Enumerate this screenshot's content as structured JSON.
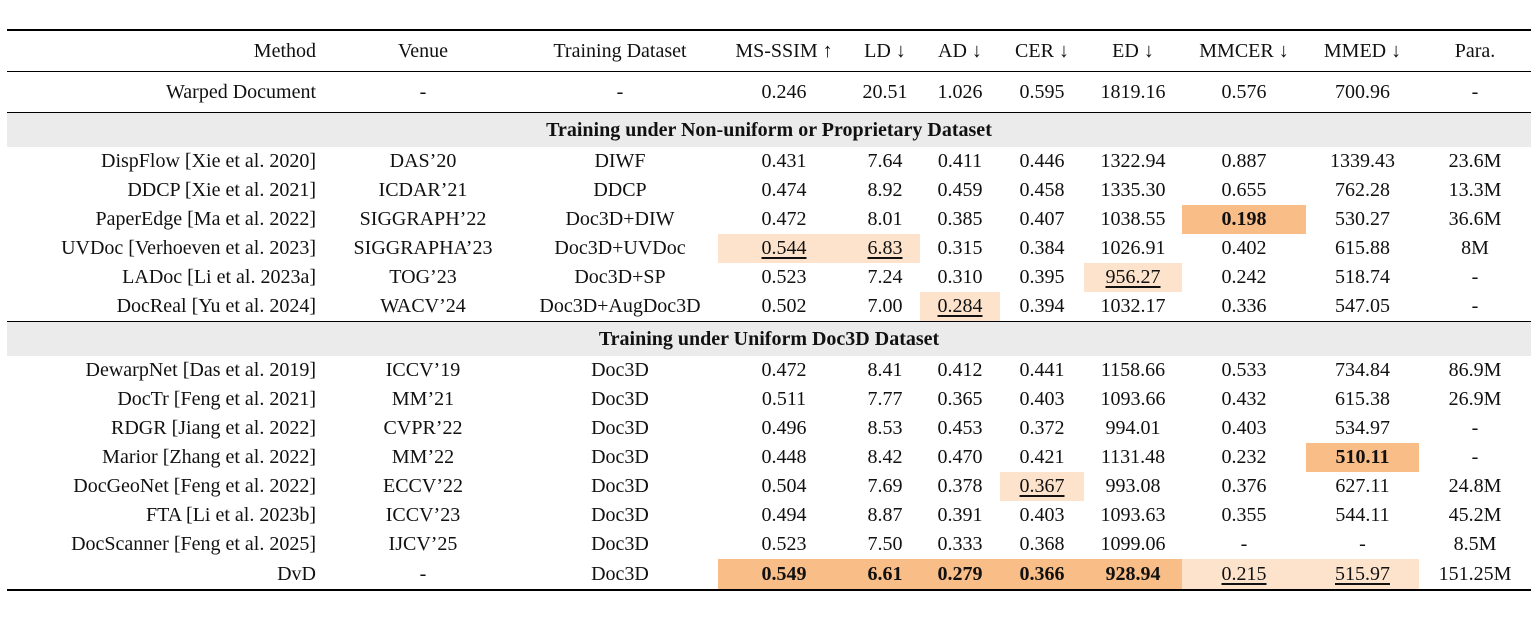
{
  "table": {
    "columns": [
      "Method",
      "Venue",
      "Training Dataset",
      "MS-SSIM ↑",
      "LD ↓",
      "AD ↓",
      "CER ↓",
      "ED ↓",
      "MMCER ↓",
      "MMED ↓",
      "Para."
    ],
    "baseline": {
      "cells": [
        "Warped Document",
        "-",
        "-",
        "0.246",
        "20.51",
        "1.026",
        "0.595",
        "1819.16",
        "0.576",
        "700.96",
        "-"
      ]
    },
    "sections": [
      {
        "title": "Training under Non-uniform or Proprietary Dataset",
        "rows": [
          {
            "cells": [
              "DispFlow [Xie et al. 2020]",
              "DAS’20",
              "DIWF",
              "0.431",
              "7.64",
              "0.411",
              "0.446",
              "1322.94",
              "0.887",
              "1339.43",
              "23.6M"
            ],
            "highlight": {}
          },
          {
            "cells": [
              "DDCP [Xie et al. 2021]",
              "ICDAR’21",
              "DDCP",
              "0.474",
              "8.92",
              "0.459",
              "0.458",
              "1335.30",
              "0.655",
              "762.28",
              "13.3M"
            ],
            "highlight": {}
          },
          {
            "cells": [
              "PaperEdge [Ma et al. 2022]",
              "SIGGRAPH’22",
              "Doc3D+DIW",
              "0.472",
              "8.01",
              "0.385",
              "0.407",
              "1038.55",
              "0.198",
              "530.27",
              "36.6M"
            ],
            "highlight": {
              "8": "best"
            }
          },
          {
            "cells": [
              "UVDoc [Verhoeven et al. 2023]",
              "SIGGRAPHA’23",
              "Doc3D+UVDoc",
              "0.544",
              "6.83",
              "0.315",
              "0.384",
              "1026.91",
              "0.402",
              "615.88",
              "8M"
            ],
            "highlight": {
              "3": "second",
              "4": "second"
            }
          },
          {
            "cells": [
              "LADoc [Li et al. 2023a]",
              "TOG’23",
              "Doc3D+SP",
              "0.523",
              "7.24",
              "0.310",
              "0.395",
              "956.27",
              "0.242",
              "518.74",
              "-"
            ],
            "highlight": {
              "7": "second"
            }
          },
          {
            "cells": [
              "DocReal [Yu et al. 2024]",
              "WACV’24",
              "Doc3D+AugDoc3D",
              "0.502",
              "7.00",
              "0.284",
              "0.394",
              "1032.17",
              "0.336",
              "547.05",
              "-"
            ],
            "highlight": {
              "5": "second"
            }
          }
        ]
      },
      {
        "title": "Training under Uniform Doc3D Dataset",
        "rows": [
          {
            "cells": [
              "DewarpNet [Das et al. 2019]",
              "ICCV’19",
              "Doc3D",
              "0.472",
              "8.41",
              "0.412",
              "0.441",
              "1158.66",
              "0.533",
              "734.84",
              "86.9M"
            ],
            "highlight": {}
          },
          {
            "cells": [
              "DocTr [Feng et al. 2021]",
              "MM’21",
              "Doc3D",
              "0.511",
              "7.77",
              "0.365",
              "0.403",
              "1093.66",
              "0.432",
              "615.38",
              "26.9M"
            ],
            "highlight": {}
          },
          {
            "cells": [
              "RDGR [Jiang et al. 2022]",
              "CVPR’22",
              "Doc3D",
              "0.496",
              "8.53",
              "0.453",
              "0.372",
              "994.01",
              "0.403",
              "534.97",
              "-"
            ],
            "highlight": {}
          },
          {
            "cells": [
              "Marior [Zhang et al. 2022]",
              "MM’22",
              "Doc3D",
              "0.448",
              "8.42",
              "0.470",
              "0.421",
              "1131.48",
              "0.232",
              "510.11",
              "-"
            ],
            "highlight": {
              "9": "best"
            }
          },
          {
            "cells": [
              "DocGeoNet [Feng et al. 2022]",
              "ECCV’22",
              "Doc3D",
              "0.504",
              "7.69",
              "0.378",
              "0.367",
              "993.08",
              "0.376",
              "627.11",
              "24.8M"
            ],
            "highlight": {
              "6": "second"
            }
          },
          {
            "cells": [
              "FTA [Li et al. 2023b]",
              "ICCV’23",
              "Doc3D",
              "0.494",
              "8.87",
              "0.391",
              "0.403",
              "1093.63",
              "0.355",
              "544.11",
              "45.2M"
            ],
            "highlight": {}
          },
          {
            "cells": [
              "DocScanner [Feng et al. 2025]",
              "IJCV’25",
              "Doc3D",
              "0.523",
              "7.50",
              "0.333",
              "0.368",
              "1099.06",
              "-",
              "-",
              "8.5M"
            ],
            "highlight": {}
          },
          {
            "cells": [
              "DvD",
              "-",
              "Doc3D",
              "0.549",
              "6.61",
              "0.279",
              "0.366",
              "928.94",
              "0.215",
              "515.97",
              "151.25M"
            ],
            "highlight": {
              "3": "best",
              "4": "best",
              "5": "best",
              "6": "best",
              "7": "best",
              "8": "second",
              "9": "second"
            }
          }
        ]
      }
    ],
    "colors": {
      "best": "#f9bd87",
      "second": "#fde3cc",
      "section_bg": "#ebebeb"
    }
  }
}
